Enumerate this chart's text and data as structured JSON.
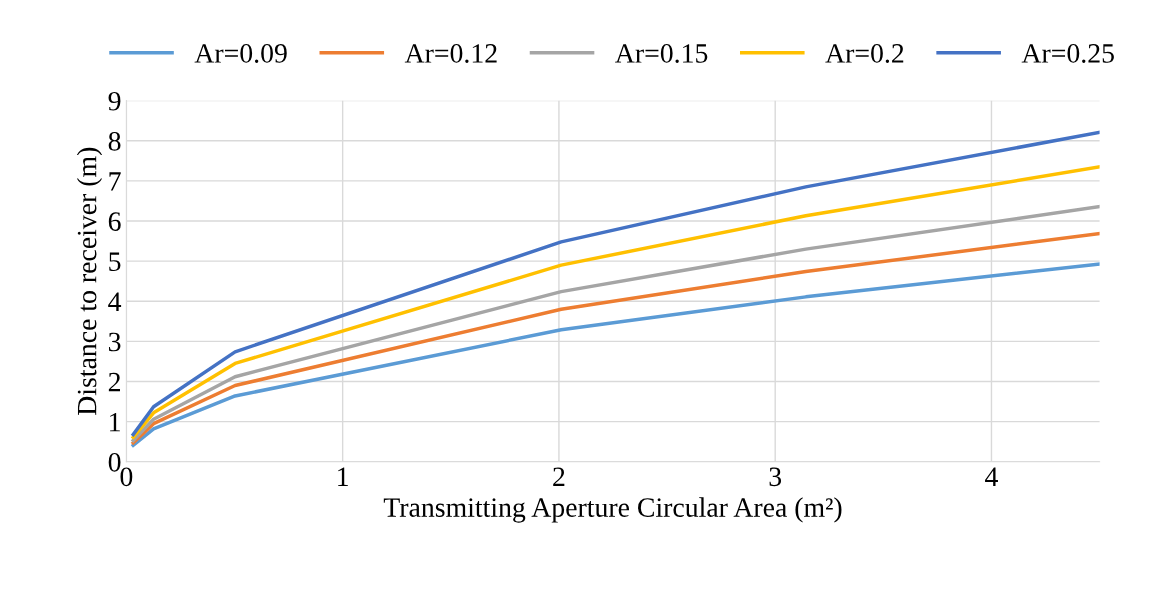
{
  "chart_data": {
    "type": "line",
    "xlabel": "Transmitting Aperture Circular Area (m²)",
    "ylabel": "Distance to receiver (m)",
    "x": [
      0.0314,
      0.1257,
      0.5027,
      2.0106,
      3.1416,
      4.5
    ],
    "series": [
      {
        "name": "Ar=0.09",
        "color": "#5b9bd5",
        "values": [
          0.41,
          0.82,
          1.64,
          3.29,
          4.11,
          4.93
        ]
      },
      {
        "name": "Ar=0.12",
        "color": "#ed7d31",
        "values": [
          0.47,
          0.95,
          1.9,
          3.8,
          4.74,
          5.69
        ]
      },
      {
        "name": "Ar=0.15",
        "color": "#a5a5a5",
        "values": [
          0.53,
          1.06,
          2.12,
          4.24,
          5.3,
          6.36
        ]
      },
      {
        "name": "Ar=0.2",
        "color": "#ffc000",
        "values": [
          0.61,
          1.22,
          2.45,
          4.9,
          6.13,
          7.35
        ]
      },
      {
        "name": "Ar=0.25",
        "color": "#4472c4",
        "values": [
          0.68,
          1.37,
          2.74,
          5.48,
          6.85,
          8.21
        ]
      }
    ],
    "xlim": [
      0,
      4.5
    ],
    "xticks": [
      0,
      1,
      2,
      3,
      4
    ],
    "ylim": [
      0,
      9
    ],
    "yticks": [
      0,
      1,
      2,
      3,
      4,
      5,
      6,
      7,
      8,
      9
    ],
    "grid": true,
    "legend": "top",
    "marker": "none",
    "line_style": "solid"
  }
}
